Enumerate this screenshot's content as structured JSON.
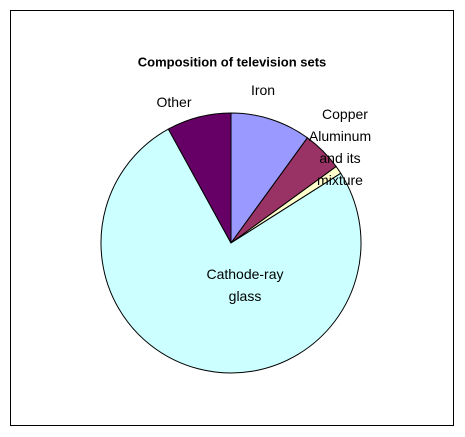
{
  "chart_data": {
    "type": "pie",
    "title": "Composition of television sets",
    "categories": [
      "Iron",
      "Copper",
      "Aluminum and its mixture",
      "Cathode-ray glass",
      "Other"
    ],
    "values": [
      10,
      5,
      1,
      76,
      8
    ],
    "colors": [
      "#9999ff",
      "#993366",
      "#ffffcc",
      "#ccffff",
      "#660066"
    ]
  }
}
